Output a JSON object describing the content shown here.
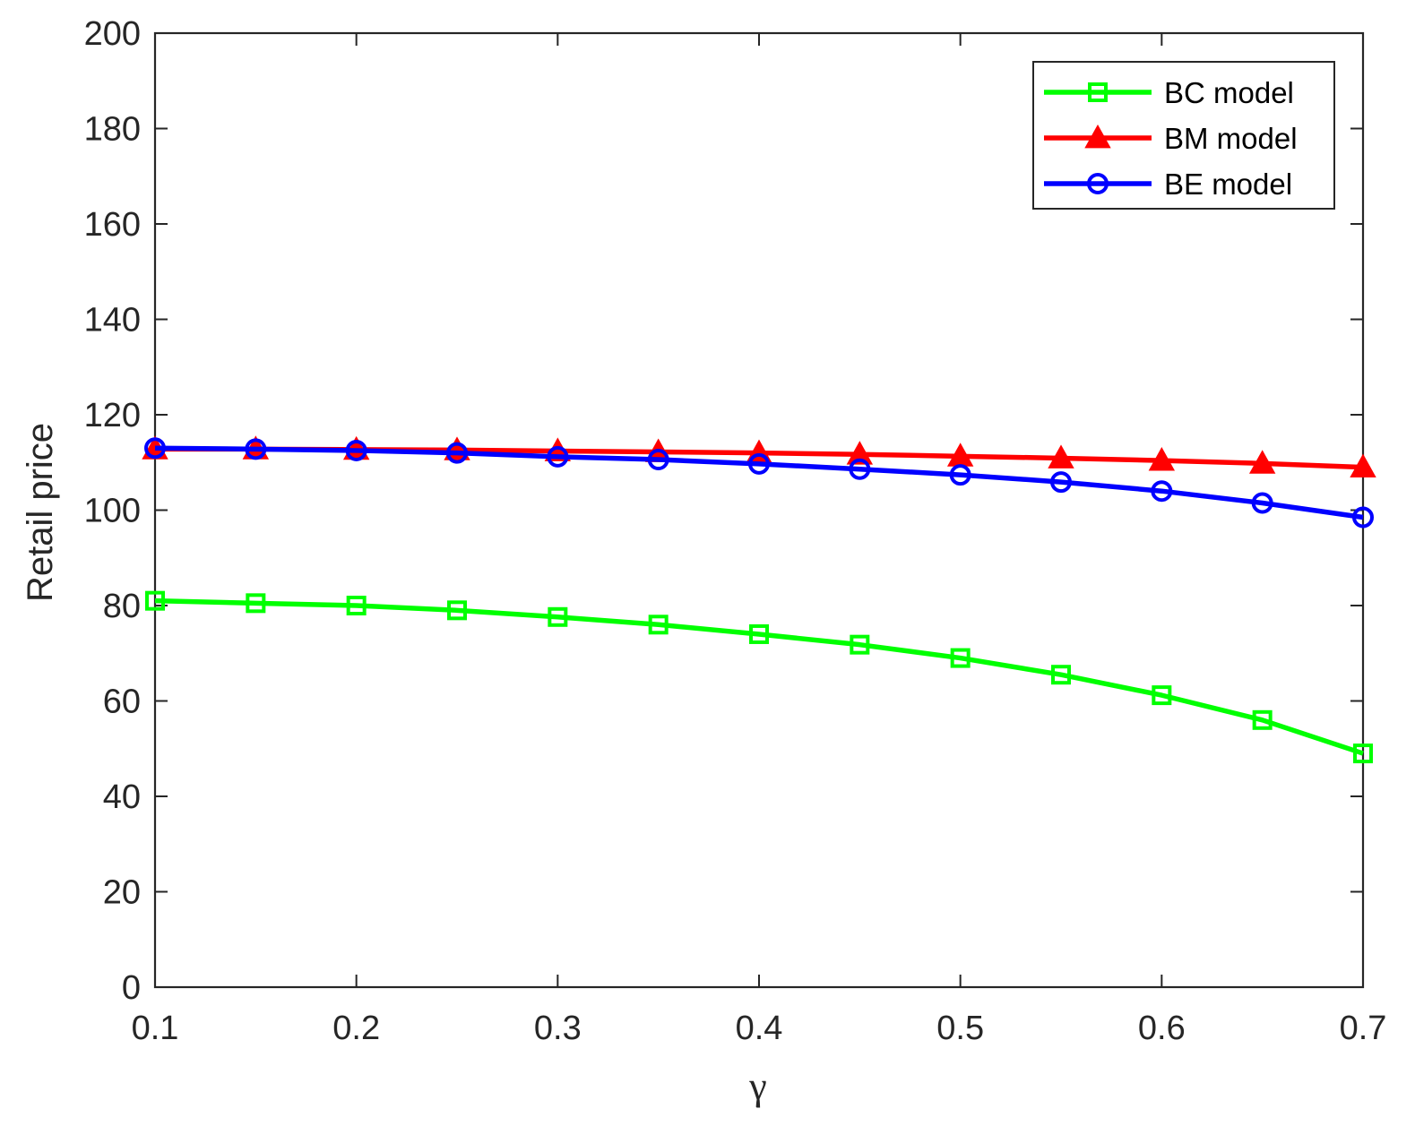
{
  "chart_data": {
    "type": "line",
    "title": "",
    "xlabel": "γ",
    "ylabel": "Retail price",
    "xlim": [
      0.1,
      0.7
    ],
    "ylim": [
      0,
      200
    ],
    "x_ticks": [
      "0.1",
      "0.2",
      "0.3",
      "0.4",
      "0.5",
      "0.6",
      "0.7"
    ],
    "y_ticks": [
      "0",
      "20",
      "40",
      "60",
      "80",
      "100",
      "120",
      "140",
      "160",
      "180",
      "200"
    ],
    "grid": false,
    "legend_position": "top-right",
    "x": [
      0.1,
      0.15,
      0.2,
      0.25,
      0.3,
      0.35,
      0.4,
      0.45,
      0.5,
      0.55,
      0.6,
      0.65,
      0.7
    ],
    "series": [
      {
        "name": "BC model",
        "color": "#00ff00",
        "marker": "square",
        "values": [
          81,
          80.5,
          80,
          79,
          77.6,
          76,
          74,
          71.8,
          69,
          65.5,
          61.2,
          56,
          49
        ]
      },
      {
        "name": "BM model",
        "color": "#ff0000",
        "marker": "triangle",
        "values": [
          112.8,
          112.8,
          112.7,
          112.6,
          112.4,
          112.2,
          112,
          111.7,
          111.3,
          110.9,
          110.4,
          109.8,
          109
        ]
      },
      {
        "name": "BE model",
        "color": "#0000ff",
        "marker": "circle",
        "values": [
          113,
          112.8,
          112.5,
          112,
          111.2,
          110.6,
          109.7,
          108.6,
          107.4,
          105.9,
          104,
          101.5,
          98.5
        ]
      }
    ]
  }
}
